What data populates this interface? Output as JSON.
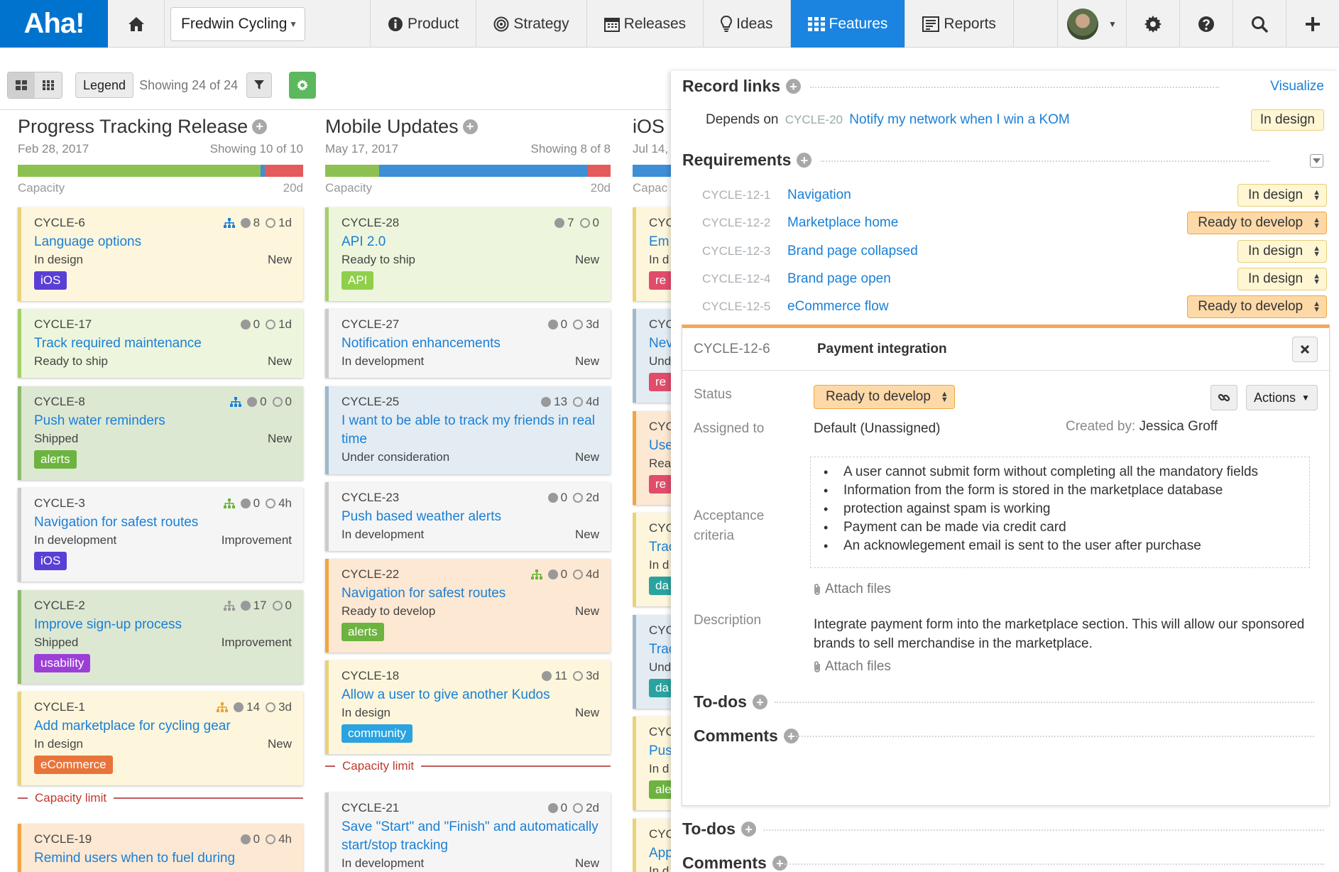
{
  "nav": {
    "logo": "Aha!",
    "workspace": "Fredwin Cycling",
    "tabs": [
      {
        "label": "Product"
      },
      {
        "label": "Strategy"
      },
      {
        "label": "Releases"
      },
      {
        "label": "Ideas"
      },
      {
        "label": "Features"
      },
      {
        "label": "Reports"
      }
    ],
    "icons": [
      "home-icon",
      "info-icon",
      "target-icon",
      "calendar-icon",
      "lightbulb-icon",
      "grid-icon",
      "report-icon",
      "gear-icon",
      "help-icon",
      "search-icon",
      "plus-icon"
    ]
  },
  "toolbar": {
    "legend": "Legend",
    "showing": "Showing 24 of 24"
  },
  "columns": [
    {
      "title": "Progress Tracking Release",
      "date": "Feb 28, 2017",
      "showing": "Showing 10 of 10",
      "capacity_label": "Capacity",
      "capacity_value": "20d",
      "capacity_fill": {
        "green": 0.85,
        "blue": 0.015,
        "red": 0.135
      },
      "cards": [
        {
          "id": "CYCLE-6",
          "title": "Language options",
          "status": "In design",
          "type": "New",
          "score": "8",
          "estimate": "1d",
          "tag": "iOS",
          "tag_color": "#5a3fd6",
          "bg": "#fdf6dc",
          "border": "#e8d27a",
          "hier": true,
          "hier_color": "#1a7fd6"
        },
        {
          "id": "CYCLE-17",
          "title": "Track required maintenance",
          "status": "Ready to ship",
          "type": "New",
          "score": "0",
          "estimate": "1d",
          "bg": "#edf6dc",
          "border": "#a6cf6a"
        },
        {
          "id": "CYCLE-8",
          "title": "Push water reminders",
          "status": "Shipped",
          "type": "New",
          "score": "0",
          "estimate": "0",
          "tag": "alerts",
          "tag_color": "#6db33f",
          "bg": "#dde8d3",
          "border": "#8fb96e",
          "hier": true,
          "hier_color": "#1a7fd6"
        },
        {
          "id": "CYCLE-3",
          "title": "Navigation for safest routes",
          "status": "In development",
          "type": "Improvement",
          "score": "0",
          "estimate": "4h",
          "tag": "iOS",
          "tag_color": "#5a3fd6",
          "bg": "#f5f5f5",
          "border": "#cccccc",
          "hier": true,
          "hier_color": "#6db33f"
        },
        {
          "id": "CYCLE-2",
          "title": "Improve sign-up process",
          "status": "Shipped",
          "type": "Improvement",
          "score": "17",
          "estimate": "0",
          "tag": "usability",
          "tag_color": "#9b3fd6",
          "bg": "#dde8d3",
          "border": "#8fb96e",
          "hier": true,
          "hier_color": "#999999"
        },
        {
          "id": "CYCLE-1",
          "title": "Add marketplace for cycling gear",
          "status": "In design",
          "type": "New",
          "score": "14",
          "estimate": "3d",
          "tag": "eCommerce",
          "tag_color": "#e8743a",
          "bg": "#fdf6dc",
          "border": "#e8d27a",
          "hier": true,
          "hier_color": "#e8a23a"
        },
        {
          "id": "CYCLE-19",
          "title": "Remind users when to fuel during",
          "status": "",
          "type": "",
          "score": "0",
          "estimate": "4h",
          "bg": "#fde8d3",
          "border": "#f0a640"
        }
      ],
      "capacity_limit": "Capacity limit"
    },
    {
      "title": "Mobile Updates",
      "date": "May 17, 2017",
      "showing": "Showing 8 of 8",
      "capacity_label": "Capacity",
      "capacity_value": "20d",
      "capacity_fill": {
        "green": 0.19,
        "blue": 0.73,
        "red": 0.08
      },
      "cards": [
        {
          "id": "CYCLE-28",
          "title": "API 2.0",
          "status": "Ready to ship",
          "type": "New",
          "score": "7",
          "estimate": "0",
          "tag": "API",
          "tag_color": "#8fcf4a",
          "bg": "#edf6dc",
          "border": "#a6cf6a"
        },
        {
          "id": "CYCLE-27",
          "title": "Notification enhancements",
          "status": "In development",
          "type": "New",
          "score": "0",
          "estimate": "3d",
          "bg": "#f5f5f5",
          "border": "#cccccc"
        },
        {
          "id": "CYCLE-25",
          "title": "I want to be able to track my friends in real time",
          "status": "Under consideration",
          "type": "New",
          "score": "13",
          "estimate": "4d",
          "bg": "#e3ecf2",
          "border": "#9fb8cc"
        },
        {
          "id": "CYCLE-23",
          "title": "Push based weather alerts",
          "status": "In development",
          "type": "New",
          "score": "0",
          "estimate": "2d",
          "bg": "#f5f5f5",
          "border": "#cccccc"
        },
        {
          "id": "CYCLE-22",
          "title": "Navigation for safest routes",
          "status": "Ready to develop",
          "type": "New",
          "score": "0",
          "estimate": "4d",
          "tag": "alerts",
          "tag_color": "#6db33f",
          "bg": "#fde8d3",
          "border": "#f0a640",
          "hier": true,
          "hier_color": "#6db33f"
        },
        {
          "id": "CYCLE-18",
          "title": "Allow a user to give another Kudos",
          "status": "In design",
          "type": "New",
          "score": "11",
          "estimate": "3d",
          "tag": "community",
          "tag_color": "#2aa3e0",
          "bg": "#fdf6dc",
          "border": "#e8d27a"
        },
        {
          "id": "CYCLE-21",
          "title": "Save \"Start\" and \"Finish\" and automatically start/stop tracking",
          "status": "In development",
          "type": "New",
          "score": "0",
          "estimate": "2d",
          "bg": "#f5f5f5",
          "border": "#cccccc"
        }
      ],
      "capacity_limit": "Capacity limit"
    },
    {
      "title": "iOS",
      "date": "Jul 14,",
      "capacity_label": "Capac",
      "cards": [
        {
          "id": "CYC",
          "title": "Em",
          "status": "In d",
          "tag": "re",
          "tag_color": "#e04c6a",
          "bg": "#fdf6dc",
          "border": "#e8d27a"
        },
        {
          "id": "CYC",
          "title": "Nev",
          "status": "Und",
          "tag": "re",
          "tag_color": "#e04c6a",
          "bg": "#e3ecf2",
          "border": "#9fb8cc"
        },
        {
          "id": "CYC",
          "title": "Use",
          "status": "Rea",
          "tag": "re",
          "tag_color": "#e04c6a",
          "bg": "#fde8d3",
          "border": "#f0a640"
        },
        {
          "id": "CYC",
          "title": "Trac",
          "status": "In d",
          "tag": "da",
          "tag_color": "#2aa3a0",
          "bg": "#fdf6dc",
          "border": "#e8d27a"
        },
        {
          "id": "CYC",
          "title": "Trac",
          "status": "Und",
          "tag": "da",
          "tag_color": "#2aa3a0",
          "bg": "#e3ecf2",
          "border": "#9fb8cc"
        },
        {
          "id": "CYC",
          "title": "Pus",
          "status": "In d",
          "tag": "ale",
          "tag_color": "#6db33f",
          "bg": "#fdf6dc",
          "border": "#e8d27a"
        },
        {
          "id": "CYC",
          "title": "App",
          "status": "In d",
          "bg": "#fdf6dc",
          "border": "#e8d27a"
        }
      ]
    }
  ],
  "panel": {
    "record_links": {
      "title": "Record links",
      "visualize": "Visualize",
      "relation": "Depends on",
      "link_id": "CYCLE-20",
      "link_name": "Notify my network when I win a KOM",
      "link_status": "In design"
    },
    "requirements": {
      "title": "Requirements",
      "items": [
        {
          "id": "CYCLE-12-1",
          "name": "Navigation",
          "status": "In design",
          "tone": "yellow"
        },
        {
          "id": "CYCLE-12-2",
          "name": "Marketplace home",
          "status": "Ready to develop",
          "tone": "orange"
        },
        {
          "id": "CYCLE-12-3",
          "name": "Brand page collapsed",
          "status": "In design",
          "tone": "yellow"
        },
        {
          "id": "CYCLE-12-4",
          "name": "Brand page open",
          "status": "In design",
          "tone": "yellow"
        },
        {
          "id": "CYCLE-12-5",
          "name": "eCommerce flow",
          "status": "Ready to develop",
          "tone": "orange"
        }
      ]
    },
    "detail": {
      "id": "CYCLE-12-6",
      "name": "Payment integration",
      "status_label": "Status",
      "status": "Ready to develop",
      "actions": "Actions",
      "assigned_label": "Assigned to",
      "assigned": "Default (Unassigned)",
      "created_label": "Created by:",
      "created_by": "Jessica Groff",
      "criteria_label_1": "Acceptance",
      "criteria_label_2": "criteria",
      "criteria": [
        "A user cannot submit form without completing all the mandatory fields",
        "Information from the form is stored in the marketplace database",
        "protection against spam is working",
        "Payment can be made via credit card",
        "An acknowlegement email is sent to the user after purchase"
      ],
      "attach": "Attach files",
      "description_label": "Description",
      "description": "Integrate payment form into the marketplace section. This will allow our sponsored brands to sell merchandise in the marketplace.",
      "todos": "To-dos",
      "comments": "Comments"
    },
    "outer_todos": "To-dos",
    "outer_comments": "Comments"
  }
}
